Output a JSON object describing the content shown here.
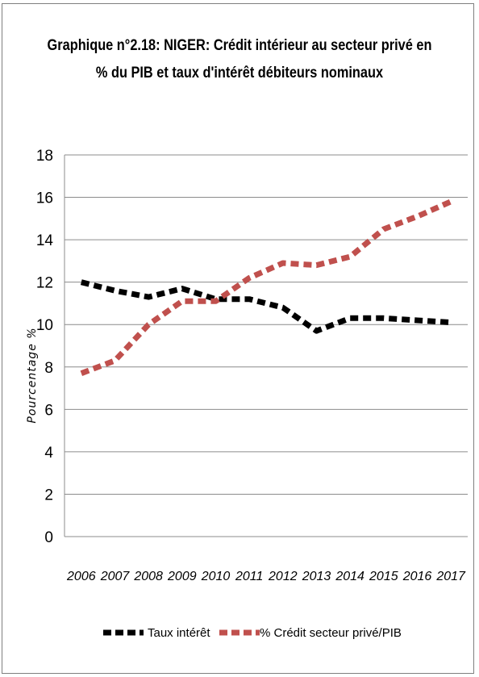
{
  "chart_data": {
    "type": "line",
    "title_line1": "Graphique n°2.18: NIGER: Crédit intérieur au secteur privé en",
    "title_line2": "% du PIB et taux d'intérêt débiteurs nominaux",
    "ylabel": "Pourcentage %",
    "xlabel": "",
    "ylim": [
      0,
      18
    ],
    "yticks": [
      "0",
      "2",
      "4",
      "6",
      "8",
      "10",
      "12",
      "14",
      "16",
      "18"
    ],
    "categories": [
      "2006",
      "2007",
      "2008",
      "2009",
      "2010",
      "2011",
      "2012",
      "2013",
      "2014",
      "2015",
      "2016",
      "2017"
    ],
    "grid": true,
    "legend_position": "bottom",
    "series": [
      {
        "name": "Taux intérêt",
        "color": "#000000",
        "values": [
          12.0,
          11.6,
          11.3,
          11.7,
          11.2,
          11.2,
          10.8,
          9.7,
          10.3,
          10.3,
          10.2,
          10.1
        ]
      },
      {
        "name": "% Crédit secteur privé/PIB",
        "color": "#c0504d",
        "values": [
          7.7,
          8.3,
          10.0,
          11.1,
          11.1,
          12.2,
          12.9,
          12.8,
          13.2,
          14.5,
          15.1,
          15.8
        ]
      }
    ]
  }
}
